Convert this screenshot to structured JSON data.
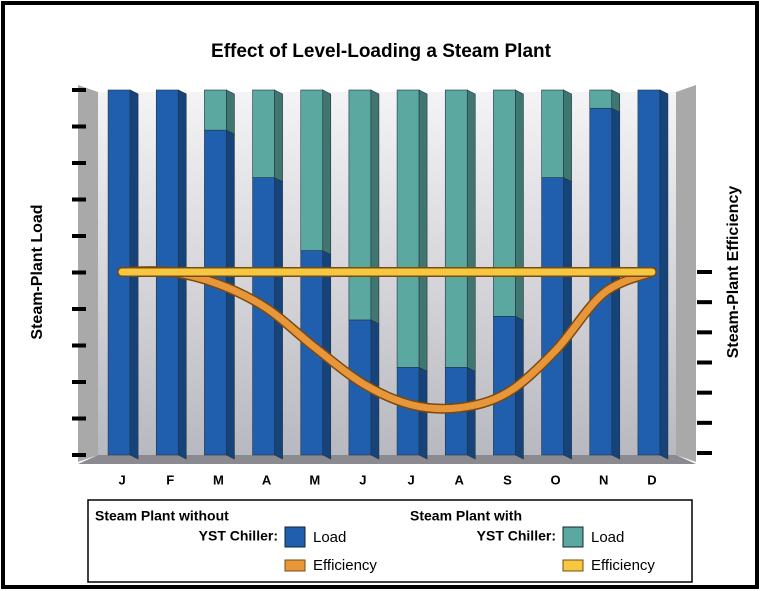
{
  "chart_data": {
    "type": "stacked_bar_line",
    "title": "Effect of Level-Loading a Steam Plant",
    "ylabel": "Steam-Plant  Load",
    "y2label": "Steam-Plant  Efficiency",
    "categories": [
      "J",
      "F",
      "M",
      "A",
      "M",
      "J",
      "J",
      "A",
      "S",
      "O",
      "N",
      "D"
    ],
    "ylim": [
      0,
      10
    ],
    "yticks": [
      0,
      1,
      2,
      3,
      4,
      5,
      6,
      7,
      8,
      9,
      10
    ],
    "y2lim": [
      0,
      6
    ],
    "y2ticks": [
      0,
      1,
      2,
      3,
      4,
      5,
      6
    ],
    "legend_groups": [
      [
        "Steam Plant without",
        "YST Chiller:"
      ],
      [
        "Steam Plant with",
        "YST Chiller:"
      ]
    ],
    "series": [
      {
        "name": "Load",
        "kind": "bar",
        "color": "#1f5fae",
        "values": [
          10,
          10,
          8.9,
          7.6,
          5.6,
          3.7,
          2.4,
          2.4,
          3.8,
          7.6,
          9.5,
          10
        ]
      },
      {
        "name": "Efficiency",
        "kind": "line",
        "axis": "y2",
        "color": "#e8963a",
        "values": [
          6,
          6,
          5.6,
          4.8,
          3.5,
          2.3,
          1.6,
          1.5,
          2.0,
          3.4,
          5.3,
          6
        ]
      },
      {
        "name": "Load",
        "kind": "bar",
        "color": "#5aa8a0",
        "values": [
          0,
          0,
          1.1,
          2.4,
          4.4,
          6.3,
          7.6,
          7.6,
          6.2,
          2.4,
          0.5,
          0
        ]
      },
      {
        "name": "Efficiency",
        "kind": "line",
        "axis": "y2",
        "color": "#f6c842",
        "values": [
          6,
          6,
          6,
          6,
          6,
          6,
          6,
          6,
          6,
          6,
          6,
          6
        ]
      }
    ]
  }
}
